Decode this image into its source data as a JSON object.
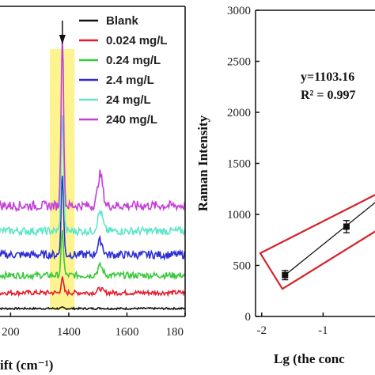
{
  "chart_data": [
    {
      "type": "line",
      "subtype": "stacked spectra",
      "xlabel": "ift (cm⁻¹)",
      "ylabel": "",
      "xlim": [
        1150,
        1800
      ],
      "x_ticks": [
        "200",
        "1400",
        "1600",
        "180"
      ],
      "highlight_band": [
        1335,
        1420
      ],
      "highlight_color": "#fdf06a",
      "arrow_x": 1378,
      "grid": false,
      "legend": "top-right",
      "series": [
        {
          "name": "Blank",
          "color": "#111111",
          "offset": 10,
          "peak_main": 1,
          "peak_second": 0.5,
          "noise": 1.2
        },
        {
          "name": "0.024 mg/L",
          "color": "#e8192c",
          "offset": 30,
          "peak_main": 18,
          "peak_second": 5,
          "noise": 3
        },
        {
          "name": "0.24 mg/L",
          "color": "#3ac93a",
          "offset": 52,
          "peak_main": 55,
          "peak_second": 12,
          "noise": 4
        },
        {
          "name": "2.4 mg/L",
          "color": "#2d2dd4",
          "offset": 78,
          "peak_main": 100,
          "peak_second": 18,
          "noise": 5
        },
        {
          "name": "24 mg/L",
          "color": "#5fe6c8",
          "offset": 108,
          "peak_main": 150,
          "peak_second": 25,
          "noise": 5
        },
        {
          "name": "240 mg/L",
          "color": "#c63fd8",
          "offset": 140,
          "peak_main": 220,
          "peak_second": 40,
          "noise": 6
        }
      ]
    },
    {
      "type": "scatter",
      "xlabel": "Lg (the conc",
      "ylabel": "Raman Intensity",
      "xlim": [
        -2.1,
        0
      ],
      "ylim": [
        0,
        3000
      ],
      "x_ticks": [
        -2,
        -1
      ],
      "y_ticks": [
        0,
        500,
        1000,
        1500,
        2000,
        2500,
        3000
      ],
      "points": [
        {
          "x": -1.62,
          "y": 405,
          "err": 45
        },
        {
          "x": -0.62,
          "y": 880,
          "err": 60
        }
      ],
      "fit_line": {
        "x": [
          -1.62,
          0
        ],
        "y": [
          405,
          1190
        ]
      },
      "equation": "y=1103.16",
      "r2": "R² = 0.997",
      "highlight_color": "#d4232a"
    }
  ]
}
